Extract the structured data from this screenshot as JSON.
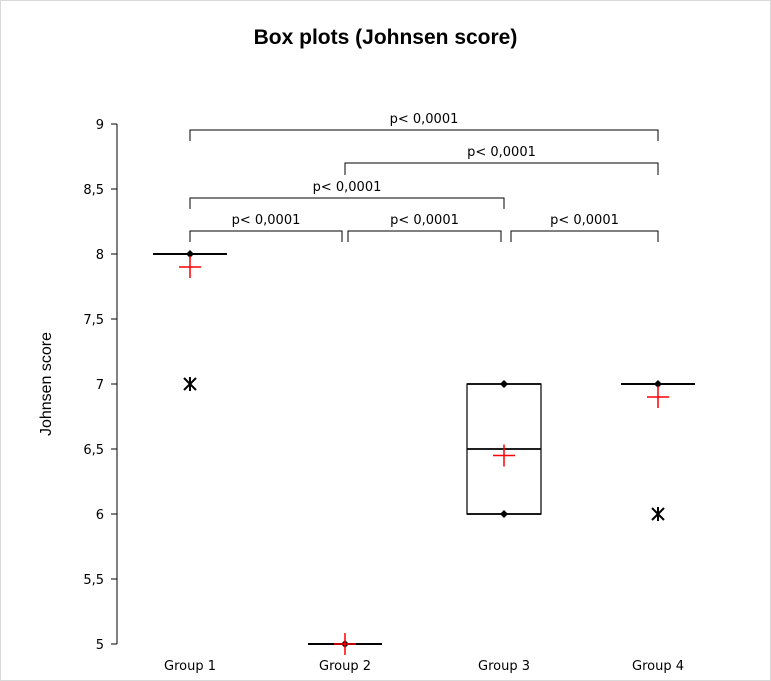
{
  "chart_data": {
    "type": "box",
    "title": "Box plots (Johnsen score)",
    "xlabel": "",
    "ylabel": "Johnsen score",
    "ylim": [
      5,
      9
    ],
    "yticks": [
      5,
      5.5,
      6,
      6.5,
      7,
      7.5,
      8,
      8.5,
      9
    ],
    "ytick_labels": [
      "5",
      "5,5",
      "6",
      "6,5",
      "7",
      "7,5",
      "8",
      "8,5",
      "9"
    ],
    "grid": false,
    "categories": [
      "Group 1",
      "Group 2",
      "Group 3",
      "Group 4"
    ],
    "boxes": [
      {
        "q1": 8,
        "median": 8,
        "q3": 8,
        "min": 8,
        "max": 8,
        "mean": 7.9,
        "outliers": [
          7
        ]
      },
      {
        "q1": 5,
        "median": 5,
        "q3": 5,
        "min": 5,
        "max": 5,
        "mean": 5.0,
        "outliers": []
      },
      {
        "q1": 6,
        "median": 6.5,
        "q3": 7,
        "min": 6,
        "max": 7,
        "mean": 6.45,
        "outliers": []
      },
      {
        "q1": 7,
        "median": 7,
        "q3": 7,
        "min": 7,
        "max": 7,
        "mean": 6.9,
        "outliers": [
          6
        ]
      }
    ],
    "mean_color": "#ff0000",
    "comparisons": [
      {
        "from": 0,
        "to": 3,
        "label": "p< 0,0001"
      },
      {
        "from": 1,
        "to": 3,
        "label": "p< 0,0001"
      },
      {
        "from": 0,
        "to": 2,
        "label": "p< 0,0001"
      },
      {
        "from": 0,
        "to": 1,
        "label": "p< 0,0001"
      },
      {
        "from": 1,
        "to": 2,
        "label": "p< 0,0001"
      },
      {
        "from": 2,
        "to": 3,
        "label": "p< 0,0001"
      }
    ]
  }
}
